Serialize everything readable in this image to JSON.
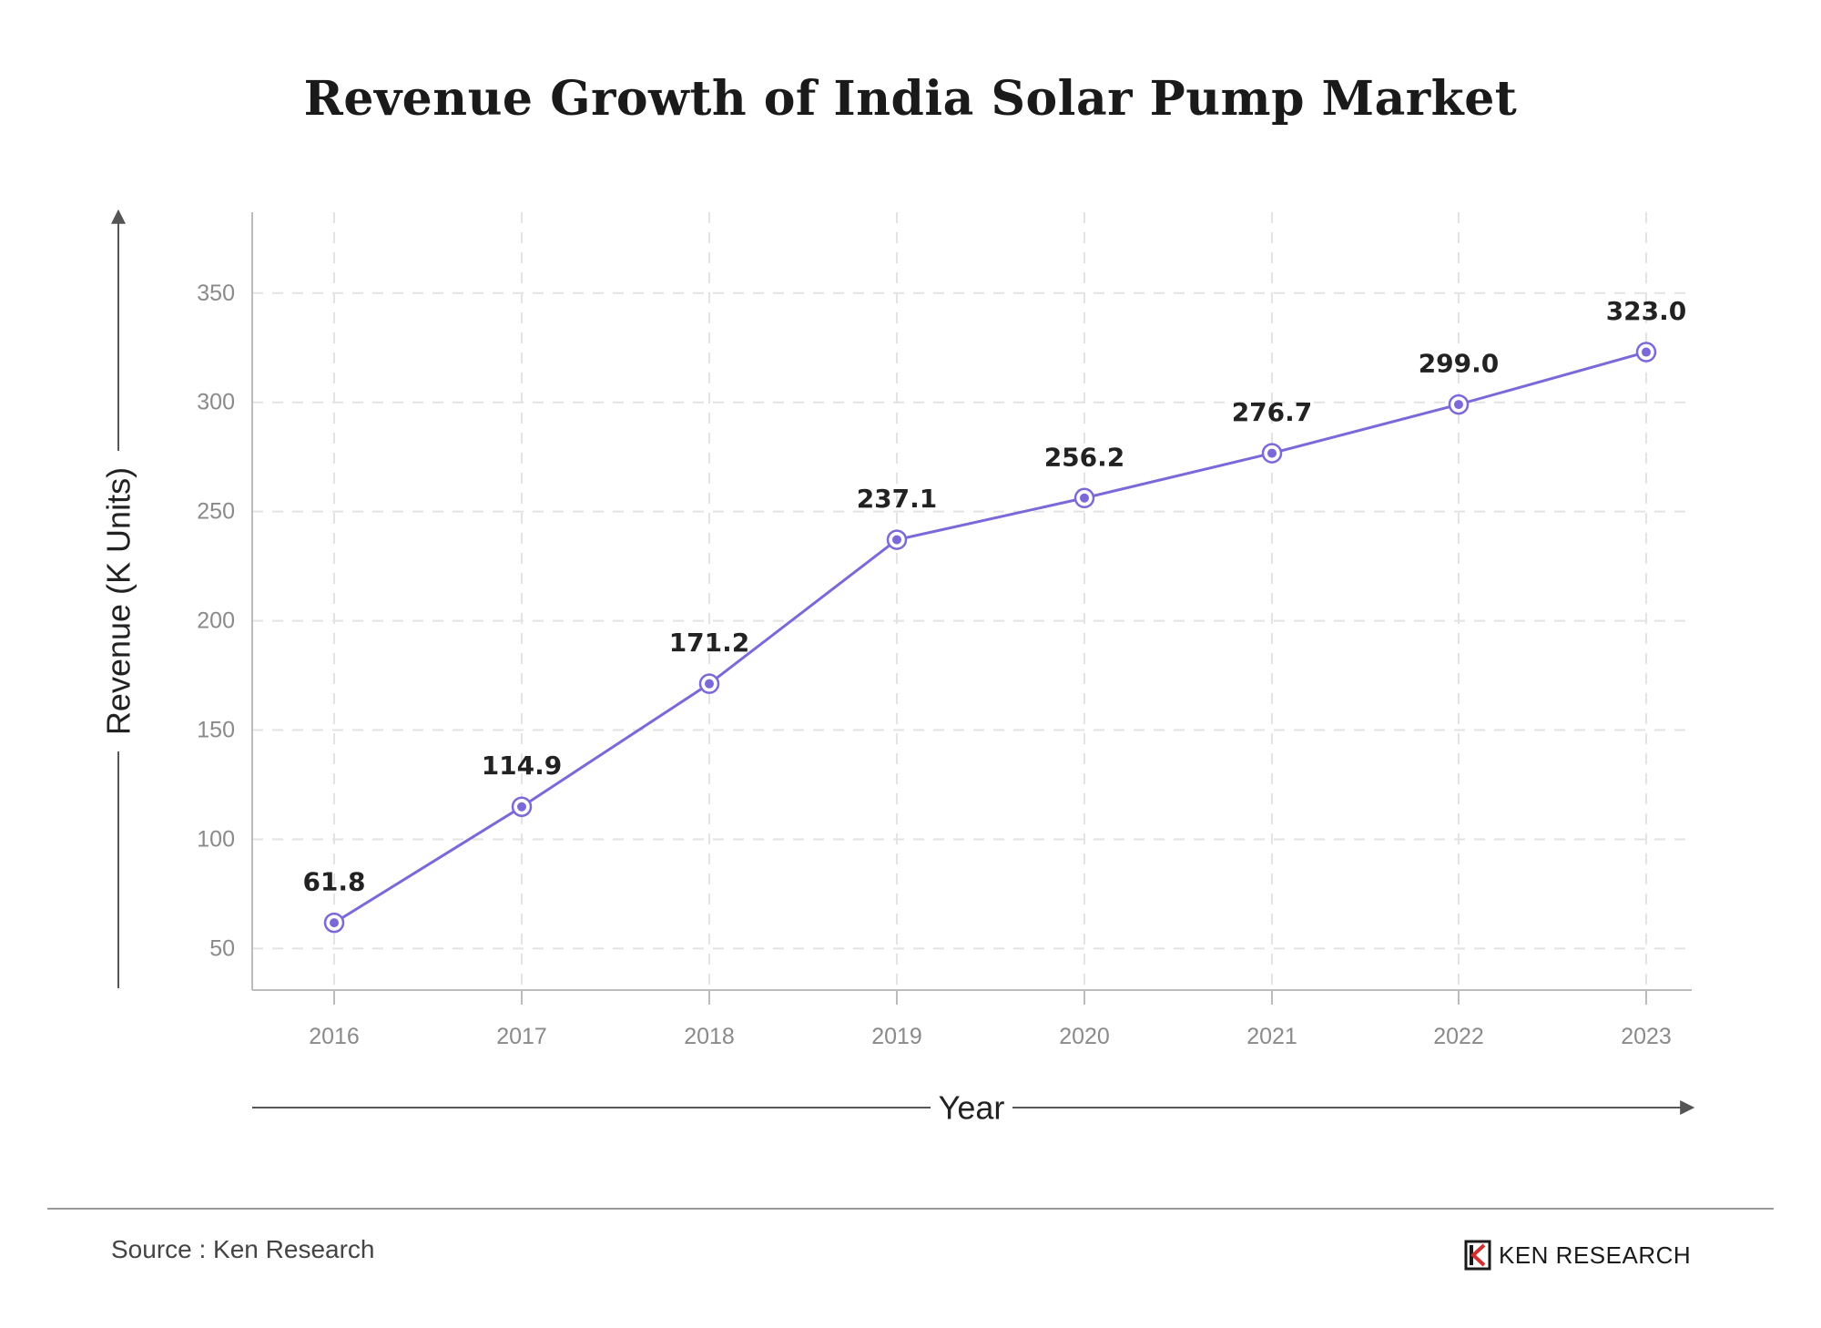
{
  "chart_data": {
    "type": "line",
    "title": "Revenue Growth of India Solar Pump Market",
    "xlabel": "Year",
    "ylabel": "Revenue (K Units)",
    "x": [
      "2016",
      "2017",
      "2018",
      "2019",
      "2020",
      "2021",
      "2022",
      "2023"
    ],
    "series": [
      {
        "values": [
          61.8,
          114.9,
          171.2,
          237.1,
          256.2,
          276.7,
          299.0,
          323.0
        ],
        "data_labels": [
          "61.8",
          "114.9",
          "171.2",
          "237.1",
          "256.2",
          "276.7",
          "299.0",
          "323.0"
        ],
        "color": "#7b68d9"
      }
    ],
    "yticks": [
      "50",
      "100",
      "150",
      "200",
      "250",
      "300",
      "350"
    ],
    "ylim": [
      31,
      387
    ],
    "grid": true,
    "legend": "none"
  },
  "footer": {
    "source": "Source : Ken Research",
    "brand": "KEN RESEARCH",
    "brand_logo_icon": "ken-research-logo-icon"
  },
  "colors": {
    "line": "#7b68d9",
    "grid": "#e3e3e3",
    "axis": "#bbbbbb",
    "tick_text": "#8a8a8a",
    "logo_red": "#d32f2f"
  }
}
